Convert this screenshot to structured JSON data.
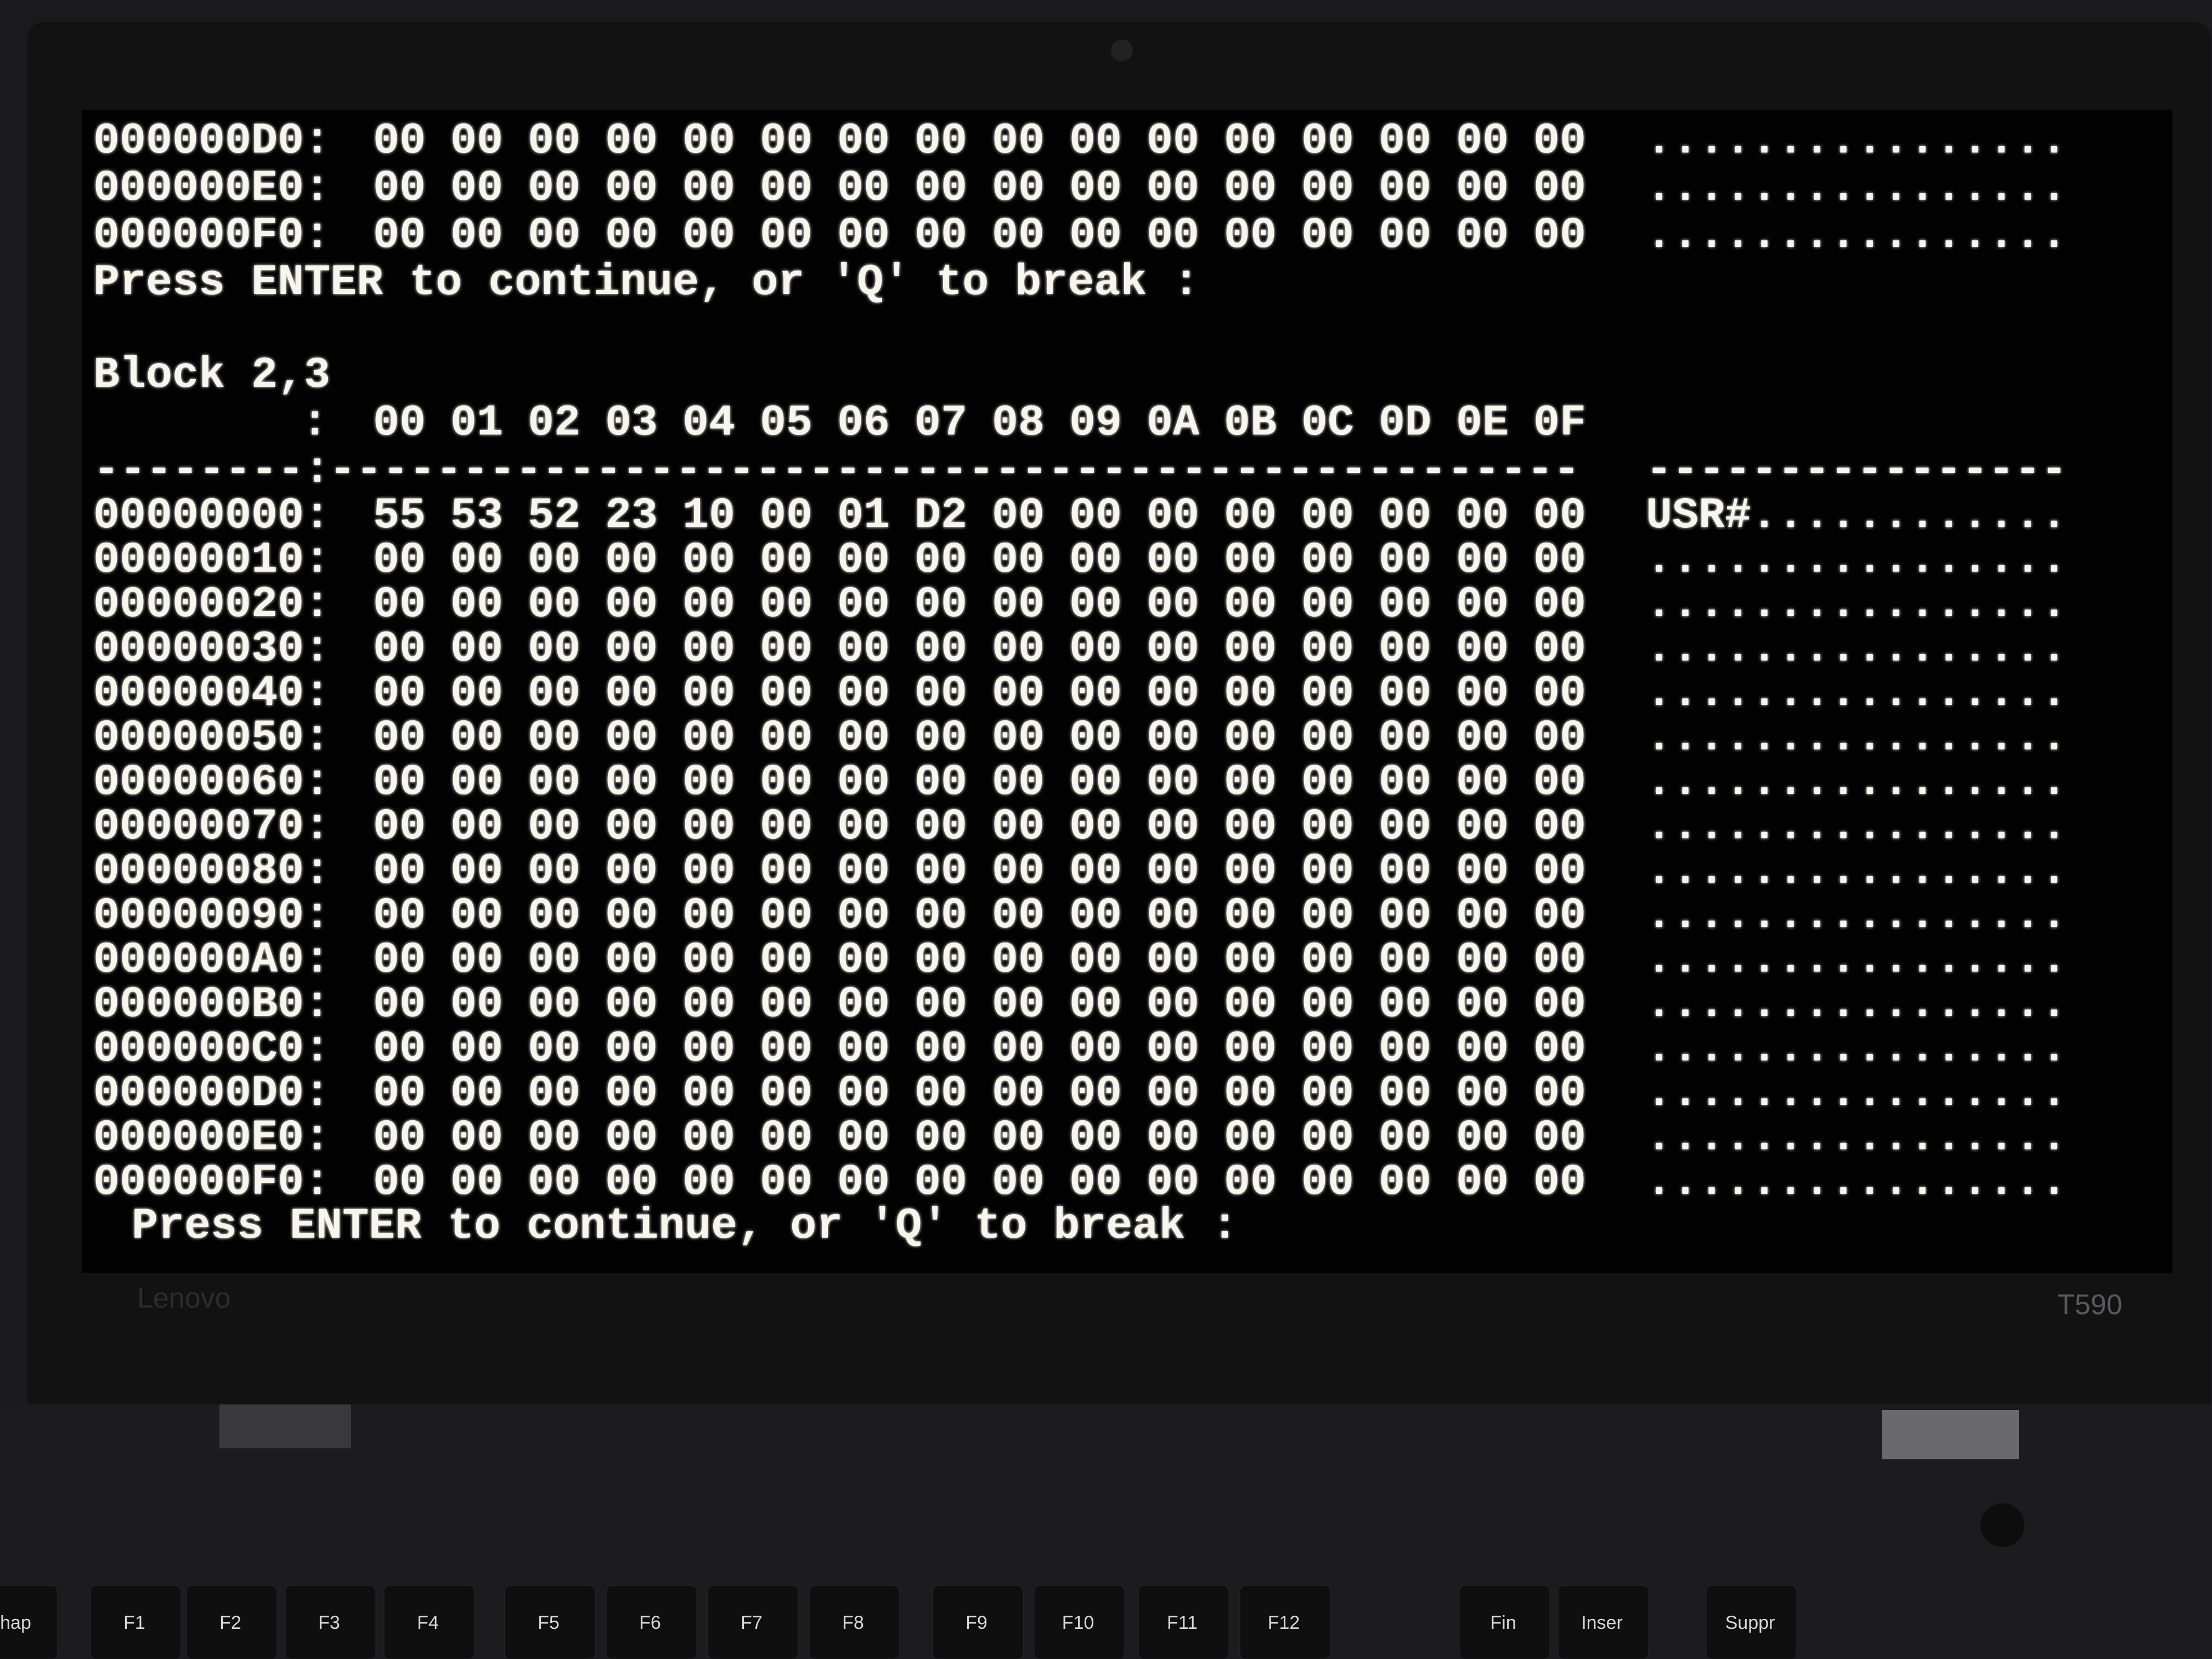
{
  "screen": {
    "top_rows": [
      {
        "address": "000000D0:",
        "bytes": [
          "00",
          "00",
          "00",
          "00",
          "00",
          "00",
          "00",
          "00",
          "00",
          "00",
          "00",
          "00",
          "00",
          "00",
          "00",
          "00"
        ],
        "ascii": "................"
      },
      {
        "address": "000000E0:",
        "bytes": [
          "00",
          "00",
          "00",
          "00",
          "00",
          "00",
          "00",
          "00",
          "00",
          "00",
          "00",
          "00",
          "00",
          "00",
          "00",
          "00"
        ],
        "ascii": "................"
      },
      {
        "address": "000000F0:",
        "bytes": [
          "00",
          "00",
          "00",
          "00",
          "00",
          "00",
          "00",
          "00",
          "00",
          "00",
          "00",
          "00",
          "00",
          "00",
          "00",
          "00"
        ],
        "ascii": "................"
      }
    ],
    "prompt_1": "Press ENTER to continue, or 'Q' to break :",
    "block_title": "Block 2,3",
    "header": {
      "colon": ":",
      "columns": [
        "00",
        "01",
        "02",
        "03",
        "04",
        "05",
        "06",
        "07",
        "08",
        "09",
        "0A",
        "0B",
        "0C",
        "0D",
        "0E",
        "0F"
      ]
    },
    "separator": {
      "left": "--------:",
      "middle": "-----------------------------------------------",
      "right": "----------------"
    },
    "rows": [
      {
        "address": "00000000:",
        "bytes": [
          "55",
          "53",
          "52",
          "23",
          "10",
          "00",
          "01",
          "D2",
          "00",
          "00",
          "00",
          "00",
          "00",
          "00",
          "00",
          "00"
        ],
        "ascii": "USR#............"
      },
      {
        "address": "00000010:",
        "bytes": [
          "00",
          "00",
          "00",
          "00",
          "00",
          "00",
          "00",
          "00",
          "00",
          "00",
          "00",
          "00",
          "00",
          "00",
          "00",
          "00"
        ],
        "ascii": "................"
      },
      {
        "address": "00000020:",
        "bytes": [
          "00",
          "00",
          "00",
          "00",
          "00",
          "00",
          "00",
          "00",
          "00",
          "00",
          "00",
          "00",
          "00",
          "00",
          "00",
          "00"
        ],
        "ascii": "................"
      },
      {
        "address": "00000030:",
        "bytes": [
          "00",
          "00",
          "00",
          "00",
          "00",
          "00",
          "00",
          "00",
          "00",
          "00",
          "00",
          "00",
          "00",
          "00",
          "00",
          "00"
        ],
        "ascii": "................"
      },
      {
        "address": "00000040:",
        "bytes": [
          "00",
          "00",
          "00",
          "00",
          "00",
          "00",
          "00",
          "00",
          "00",
          "00",
          "00",
          "00",
          "00",
          "00",
          "00",
          "00"
        ],
        "ascii": "................"
      },
      {
        "address": "00000050:",
        "bytes": [
          "00",
          "00",
          "00",
          "00",
          "00",
          "00",
          "00",
          "00",
          "00",
          "00",
          "00",
          "00",
          "00",
          "00",
          "00",
          "00"
        ],
        "ascii": "................"
      },
      {
        "address": "00000060:",
        "bytes": [
          "00",
          "00",
          "00",
          "00",
          "00",
          "00",
          "00",
          "00",
          "00",
          "00",
          "00",
          "00",
          "00",
          "00",
          "00",
          "00"
        ],
        "ascii": "................"
      },
      {
        "address": "00000070:",
        "bytes": [
          "00",
          "00",
          "00",
          "00",
          "00",
          "00",
          "00",
          "00",
          "00",
          "00",
          "00",
          "00",
          "00",
          "00",
          "00",
          "00"
        ],
        "ascii": "................"
      },
      {
        "address": "00000080:",
        "bytes": [
          "00",
          "00",
          "00",
          "00",
          "00",
          "00",
          "00",
          "00",
          "00",
          "00",
          "00",
          "00",
          "00",
          "00",
          "00",
          "00"
        ],
        "ascii": "................"
      },
      {
        "address": "00000090:",
        "bytes": [
          "00",
          "00",
          "00",
          "00",
          "00",
          "00",
          "00",
          "00",
          "00",
          "00",
          "00",
          "00",
          "00",
          "00",
          "00",
          "00"
        ],
        "ascii": "................"
      },
      {
        "address": "000000A0:",
        "bytes": [
          "00",
          "00",
          "00",
          "00",
          "00",
          "00",
          "00",
          "00",
          "00",
          "00",
          "00",
          "00",
          "00",
          "00",
          "00",
          "00"
        ],
        "ascii": "................"
      },
      {
        "address": "000000B0:",
        "bytes": [
          "00",
          "00",
          "00",
          "00",
          "00",
          "00",
          "00",
          "00",
          "00",
          "00",
          "00",
          "00",
          "00",
          "00",
          "00",
          "00"
        ],
        "ascii": "................"
      },
      {
        "address": "000000C0:",
        "bytes": [
          "00",
          "00",
          "00",
          "00",
          "00",
          "00",
          "00",
          "00",
          "00",
          "00",
          "00",
          "00",
          "00",
          "00",
          "00",
          "00"
        ],
        "ascii": "................"
      },
      {
        "address": "000000D0:",
        "bytes": [
          "00",
          "00",
          "00",
          "00",
          "00",
          "00",
          "00",
          "00",
          "00",
          "00",
          "00",
          "00",
          "00",
          "00",
          "00",
          "00"
        ],
        "ascii": "................"
      },
      {
        "address": "000000E0:",
        "bytes": [
          "00",
          "00",
          "00",
          "00",
          "00",
          "00",
          "00",
          "00",
          "00",
          "00",
          "00",
          "00",
          "00",
          "00",
          "00",
          "00"
        ],
        "ascii": "................"
      },
      {
        "address": "000000F0:",
        "bytes": [
          "00",
          "00",
          "00",
          "00",
          "00",
          "00",
          "00",
          "00",
          "00",
          "00",
          "00",
          "00",
          "00",
          "00",
          "00",
          "00"
        ],
        "ascii": "................"
      }
    ],
    "prompt_2": "Press ENTER to continue, or 'Q' to break :"
  },
  "laptop": {
    "brand": "Lenovo",
    "model": "T590"
  },
  "keyboard": [
    "chap",
    "F1",
    "F2",
    "F3",
    "F4",
    "F5",
    "F6",
    "F7",
    "F8",
    "F9",
    "F10",
    "F11",
    "F12",
    "Fin",
    "Inser",
    "Suppr"
  ]
}
